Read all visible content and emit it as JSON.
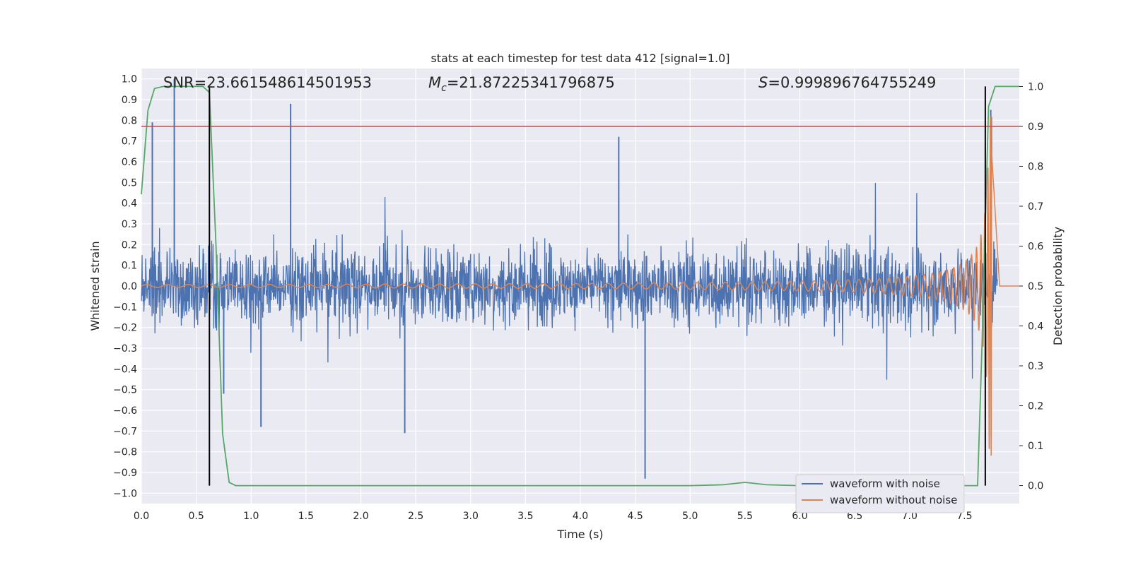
{
  "chart_data": {
    "type": "line",
    "title": "stats at each timestep for test data 412 [signal=1.0]",
    "xlabel": "Time (s)",
    "ylabel": "Whitened strain",
    "y2label": "Detection probability",
    "xlim": [
      0.0,
      8.0
    ],
    "ylim": [
      -1.05,
      1.05
    ],
    "y2lim": [
      -0.045,
      1.045
    ],
    "xticks": [
      "0.0",
      "0.5",
      "1.0",
      "1.5",
      "2.0",
      "2.5",
      "3.0",
      "3.5",
      "4.0",
      "4.5",
      "5.0",
      "5.5",
      "6.0",
      "6.5",
      "7.0",
      "7.5"
    ],
    "yticks": [
      "1.0",
      "0.9",
      "0.8",
      "0.7",
      "0.6",
      "0.5",
      "0.4",
      "0.3",
      "0.2",
      "0.1",
      "0.0",
      "−0.1",
      "−0.2",
      "−0.3",
      "−0.4",
      "−0.5",
      "−0.6",
      "−0.7",
      "−0.8",
      "−0.9",
      "−1.0"
    ],
    "y2ticks": [
      "1.0",
      "0.9",
      "0.8",
      "0.7",
      "0.6",
      "0.5",
      "0.4",
      "0.3",
      "0.2",
      "0.1",
      "0.0"
    ],
    "annotations": {
      "snr": "SNR=23.661548614501953",
      "mc_symbol": "M",
      "mc_sub": "c",
      "mc_value": "=21.87225341796875",
      "s_symbol": "S",
      "s_value": "=0.999896764755249"
    },
    "threshold_line": {
      "axis": "y2",
      "value": 0.9,
      "color": "#c44e52"
    },
    "vertical_lines": [
      0.62,
      7.69
    ],
    "series": [
      {
        "name": "waveform with noise",
        "color": "#4c72b0",
        "axis": "y",
        "description": "noisy whitened strain, amplitude roughly ±0.45 with spikes",
        "notable_spikes": [
          {
            "x": 0.1,
            "y": 0.79
          },
          {
            "x": 0.3,
            "y": 1.0
          },
          {
            "x": 1.36,
            "y": 0.88
          },
          {
            "x": 4.35,
            "y": 0.72
          },
          {
            "x": 0.75,
            "y": -0.52
          },
          {
            "x": 1.09,
            "y": -0.68
          },
          {
            "x": 2.4,
            "y": -0.71
          },
          {
            "x": 4.59,
            "y": -0.93
          },
          {
            "x": 7.74,
            "y": 0.85
          }
        ]
      },
      {
        "name": "waveform without noise",
        "color": "#dd8452",
        "axis": "y",
        "description": "chirp signal with growing amplitude ending at merger near 7.75 s",
        "start_amplitude": 0.007,
        "peak_amplitude": 0.82,
        "merger_time": 7.75
      },
      {
        "name": "detection probability",
        "color": "#55a868",
        "axis": "y2",
        "x": [
          0.0,
          0.06,
          0.12,
          0.2,
          0.3,
          0.4,
          0.5,
          0.56,
          0.62,
          0.68,
          0.74,
          0.8,
          0.86,
          1.0,
          2.0,
          3.0,
          4.0,
          5.0,
          5.3,
          5.5,
          5.7,
          6.0,
          7.0,
          7.62,
          7.66,
          7.72,
          7.78,
          8.0
        ],
        "y": [
          0.73,
          0.94,
          0.995,
          1.0,
          1.0,
          1.0,
          1.0,
          1.0,
          0.985,
          0.6,
          0.13,
          0.008,
          0.0,
          0.0,
          0.0,
          0.0,
          0.0,
          0.0,
          0.002,
          0.008,
          0.002,
          0.0,
          0.0,
          0.0,
          0.35,
          0.95,
          1.0,
          1.0
        ]
      }
    ],
    "legend": [
      "waveform with noise",
      "waveform without noise"
    ],
    "legend_position": "lower-right",
    "grid": true
  }
}
